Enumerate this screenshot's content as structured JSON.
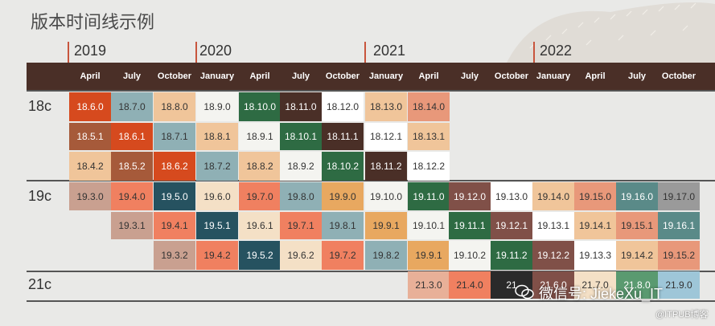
{
  "title": "版本时间线示例",
  "years": [
    "2019",
    "2020",
    "2021",
    "2022"
  ],
  "months": [
    "April",
    "July",
    "October",
    "January",
    "April",
    "July",
    "October",
    "January",
    "April",
    "July",
    "October",
    "January",
    "April",
    "July",
    "October"
  ],
  "row_groups": [
    "18c",
    "19c",
    "21c"
  ],
  "rows": [
    [
      "18.6.0",
      "18.7.0",
      "18.8.0",
      "18.9.0",
      "18.10.0",
      "18.11.0",
      "18.12.0",
      "18.13.0",
      "18.14.0",
      "",
      "",
      "",
      "",
      "",
      ""
    ],
    [
      "18.5.1",
      "18.6.1",
      "18.7.1",
      "18.8.1",
      "18.9.1",
      "18.10.1",
      "18.11.1",
      "18.12.1",
      "18.13.1",
      "",
      "",
      "",
      "",
      "",
      ""
    ],
    [
      "18.4.2",
      "18.5.2",
      "18.6.2",
      "18.7.2",
      "18.8.2",
      "18.9.2",
      "18.10.2",
      "18.11.2",
      "18.12.2",
      "",
      "",
      "",
      "",
      "",
      ""
    ],
    [
      "19.3.0",
      "19.4.0",
      "19.5.0",
      "19.6.0",
      "19.7.0",
      "19.8.0",
      "19.9.0",
      "19.10.0",
      "19.11.0",
      "19.12.0",
      "19.13.0",
      "19.14.0",
      "19.15.0",
      "19.16.0",
      "19.17.0"
    ],
    [
      "",
      "19.3.1",
      "19.4.1",
      "19.5.1",
      "19.6.1",
      "19.7.1",
      "19.8.1",
      "19.9.1",
      "19.10.1",
      "19.11.1",
      "19.12.1",
      "19.13.1",
      "19.14.1",
      "19.15.1",
      "19.16.1"
    ],
    [
      "",
      "",
      "19.3.2",
      "19.4.2",
      "19.5.2",
      "19.6.2",
      "19.7.2",
      "19.8.2",
      "19.9.1",
      "19.10.2",
      "19.11.2",
      "19.12.2",
      "19.13.3",
      "19.14.2",
      "19.15.2"
    ],
    [
      "",
      "",
      "",
      "",
      "",
      "",
      "",
      "",
      "21.3.0",
      "21.4.0",
      "21",
      "21.6.0",
      "21.7.0",
      "21.8.0",
      "21.9.0"
    ]
  ],
  "colors": [
    [
      "#d64a1e",
      "#8fb0b5",
      "#f0c59a",
      "#f4f4f0",
      "#2e6b43",
      "#4a2f27",
      "#ffffff",
      "#f0c59a",
      "#e8987a",
      "",
      "",
      "",
      "",
      "",
      ""
    ],
    [
      "#a65a3a",
      "#d64a1e",
      "#8fb0b5",
      "#f0c59a",
      "#f4f4f0",
      "#2e6b43",
      "#4a2f27",
      "#ffffff",
      "#f0c59a",
      "",
      "",
      "",
      "",
      "",
      ""
    ],
    [
      "#f0c59a",
      "#a65a3a",
      "#d64a1e",
      "#8fb0b5",
      "#f0c59a",
      "#f4f4f0",
      "#2e6b43",
      "#4a2f27",
      "#ffffff",
      "",
      "",
      "",
      "",
      "",
      ""
    ],
    [
      "#c9a090",
      "#f08060",
      "#265260",
      "#f4e0c6",
      "#f08060",
      "#8fb0b5",
      "#e8a860",
      "#f4f4f0",
      "#2e6b43",
      "#805048",
      "#ffffff",
      "#f0c59a",
      "#e8987a",
      "#5a8a88",
      "#9a9a9a"
    ],
    [
      "",
      "#c9a090",
      "#f08060",
      "#265260",
      "#f4e0c6",
      "#f08060",
      "#8fb0b5",
      "#e8a860",
      "#f4f4f0",
      "#2e6b43",
      "#805048",
      "#ffffff",
      "#f0c59a",
      "#e8987a",
      "#5a8a88"
    ],
    [
      "",
      "",
      "#c9a090",
      "#f08060",
      "#265260",
      "#f4e0c6",
      "#f08060",
      "#8fb0b5",
      "#e8a860",
      "#f4f4f0",
      "#2e6b43",
      "#805048",
      "#ffffff",
      "#f0c59a",
      "#e8987a"
    ],
    [
      "",
      "",
      "",
      "",
      "",
      "",
      "",
      "",
      "#e8b098",
      "#f08060",
      "#2a2a2a",
      "#805048",
      "#f4e0c6",
      "#5a9a70",
      "#9ec6d8"
    ]
  ],
  "watermark": "微信号: JiekeXu_IT",
  "footer": "@ITPUB博客"
}
